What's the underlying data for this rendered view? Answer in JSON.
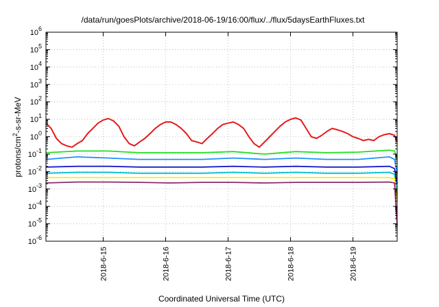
{
  "chart_data": {
    "type": "line",
    "title": "/data/run/goesPlots/archive/2018-06-19/16:00/flux/../flux/5daysEarthFluxes.txt",
    "xlabel": "Coordinated Universal Time (UTC)",
    "ylabel": {
      "base": "protons/cm",
      "sup": "2",
      "rest": "-s-sr-MeV"
    },
    "scale": {
      "y": "log",
      "x": "date"
    },
    "xlim": [
      "2018-06-14 02:00",
      "2018-06-19 17:00"
    ],
    "ylim": [
      1e-06,
      1000000.0
    ],
    "y_ticks": [
      {
        "base": "10",
        "exp": "-6"
      },
      {
        "base": "10",
        "exp": "-5"
      },
      {
        "base": "10",
        "exp": "-4"
      },
      {
        "base": "10",
        "exp": "-3"
      },
      {
        "base": "10",
        "exp": "-2"
      },
      {
        "base": "10",
        "exp": "-1"
      },
      {
        "base": "10",
        "exp": "0"
      },
      {
        "base": "10",
        "exp": "1"
      },
      {
        "base": "10",
        "exp": "2"
      },
      {
        "base": "10",
        "exp": "3"
      },
      {
        "base": "10",
        "exp": "4"
      },
      {
        "base": "10",
        "exp": "5"
      },
      {
        "base": "10",
        "exp": "6"
      }
    ],
    "x_ticks": [
      "2018-6-15",
      "2018-6-16",
      "2018-6-17",
      "2018-6-18",
      "2018-6-19"
    ],
    "grid": true,
    "series": [
      {
        "color": "#e41a1c",
        "x": [
          "2018-06-14 02:00",
          "2018-06-14 04:00",
          "2018-06-14 06:00",
          "2018-06-14 08:00",
          "2018-06-14 10:00",
          "2018-06-14 12:00",
          "2018-06-14 14:00",
          "2018-06-14 16:00",
          "2018-06-14 18:00",
          "2018-06-14 20:00",
          "2018-06-14 22:00",
          "2018-06-15 00:00",
          "2018-06-15 02:00",
          "2018-06-15 04:00",
          "2018-06-15 06:00",
          "2018-06-15 08:00",
          "2018-06-15 10:00",
          "2018-06-15 12:00",
          "2018-06-15 14:00",
          "2018-06-15 16:00",
          "2018-06-15 18:00",
          "2018-06-15 20:00",
          "2018-06-15 22:00",
          "2018-06-16 00:00",
          "2018-06-16 02:00",
          "2018-06-16 04:00",
          "2018-06-16 06:00",
          "2018-06-16 08:00",
          "2018-06-16 10:00",
          "2018-06-16 12:00",
          "2018-06-16 14:00",
          "2018-06-16 16:00",
          "2018-06-16 18:00",
          "2018-06-16 20:00",
          "2018-06-16 22:00",
          "2018-06-17 00:00",
          "2018-06-17 02:00",
          "2018-06-17 04:00",
          "2018-06-17 06:00",
          "2018-06-17 08:00",
          "2018-06-17 10:00",
          "2018-06-17 12:00",
          "2018-06-17 14:00",
          "2018-06-17 16:00",
          "2018-06-17 18:00",
          "2018-06-17 20:00",
          "2018-06-17 22:00",
          "2018-06-18 00:00",
          "2018-06-18 02:00",
          "2018-06-18 04:00",
          "2018-06-18 06:00",
          "2018-06-18 08:00",
          "2018-06-18 10:00",
          "2018-06-18 12:00",
          "2018-06-18 14:00",
          "2018-06-18 16:00",
          "2018-06-18 18:00",
          "2018-06-18 20:00",
          "2018-06-18 22:00",
          "2018-06-19 00:00",
          "2018-06-19 02:00",
          "2018-06-19 04:00",
          "2018-06-19 06:00",
          "2018-06-19 08:00",
          "2018-06-19 10:00",
          "2018-06-19 12:00",
          "2018-06-19 14:00",
          "2018-06-19 16:00",
          "2018-06-19 17:00"
        ],
        "values": [
          6,
          3,
          0.8,
          0.4,
          0.3,
          0.25,
          0.4,
          0.6,
          1.5,
          3,
          6,
          9,
          11,
          8,
          4,
          1,
          0.4,
          0.3,
          0.5,
          0.8,
          1.5,
          3,
          5,
          7,
          7,
          5,
          3,
          1.5,
          0.6,
          0.5,
          0.4,
          0.8,
          1.5,
          3,
          5,
          6,
          7,
          5,
          3,
          1,
          0.4,
          0.25,
          0.5,
          1,
          2,
          4,
          7,
          10,
          12,
          9,
          3,
          1,
          0.8,
          1.2,
          2,
          3,
          2.5,
          2,
          1.5,
          1,
          0.8,
          0.6,
          0.7,
          0.6,
          1,
          1.3,
          1.5,
          1.2,
          0.5
        ]
      },
      {
        "color": "#22dd22",
        "x": [
          "2018-06-14 02:00",
          "2018-06-14 14:00",
          "2018-06-15 02:00",
          "2018-06-15 14:00",
          "2018-06-16 02:00",
          "2018-06-16 14:00",
          "2018-06-17 02:00",
          "2018-06-17 14:00",
          "2018-06-18 02:00",
          "2018-06-18 14:00",
          "2018-06-19 02:00",
          "2018-06-19 14:00",
          "2018-06-19 16:00",
          "2018-06-19 17:00"
        ],
        "values": [
          0.12,
          0.15,
          0.15,
          0.12,
          0.12,
          0.12,
          0.14,
          0.1,
          0.14,
          0.12,
          0.13,
          0.17,
          0.15,
          0.05
        ]
      },
      {
        "color": "#1e90ff",
        "x": [
          "2018-06-14 02:00",
          "2018-06-14 14:00",
          "2018-06-15 02:00",
          "2018-06-15 14:00",
          "2018-06-16 02:00",
          "2018-06-16 14:00",
          "2018-06-17 02:00",
          "2018-06-17 14:00",
          "2018-06-18 02:00",
          "2018-06-18 14:00",
          "2018-06-19 02:00",
          "2018-06-19 14:00",
          "2018-06-19 16:00",
          "2018-06-19 17:00"
        ],
        "values": [
          0.05,
          0.07,
          0.06,
          0.05,
          0.05,
          0.05,
          0.06,
          0.05,
          0.06,
          0.05,
          0.05,
          0.07,
          0.05,
          0.008
        ]
      },
      {
        "color": "#1b1bcc",
        "x": [
          "2018-06-14 02:00",
          "2018-06-14 14:00",
          "2018-06-15 02:00",
          "2018-06-15 14:00",
          "2018-06-16 02:00",
          "2018-06-16 14:00",
          "2018-06-17 02:00",
          "2018-06-17 14:00",
          "2018-06-18 02:00",
          "2018-06-18 14:00",
          "2018-06-19 02:00",
          "2018-06-19 14:00",
          "2018-06-19 16:00",
          "2018-06-19 17:00"
        ],
        "values": [
          0.018,
          0.02,
          0.02,
          0.018,
          0.018,
          0.018,
          0.02,
          0.018,
          0.02,
          0.018,
          0.018,
          0.02,
          0.015,
          0.002
        ]
      },
      {
        "color": "#00bcd4",
        "x": [
          "2018-06-14 02:00",
          "2018-06-14 14:00",
          "2018-06-15 02:00",
          "2018-06-15 14:00",
          "2018-06-16 02:00",
          "2018-06-16 14:00",
          "2018-06-17 02:00",
          "2018-06-17 14:00",
          "2018-06-18 02:00",
          "2018-06-18 14:00",
          "2018-06-19 02:00",
          "2018-06-19 14:00",
          "2018-06-19 16:00",
          "2018-06-19 17:00"
        ],
        "values": [
          0.008,
          0.009,
          0.009,
          0.008,
          0.008,
          0.008,
          0.009,
          0.008,
          0.009,
          0.008,
          0.008,
          0.009,
          0.007,
          0.0005
        ]
      },
      {
        "color": "#ffee00",
        "x": [
          "2018-06-14 02:00",
          "2018-06-14 14:00",
          "2018-06-15 02:00",
          "2018-06-15 14:00",
          "2018-06-16 02:00",
          "2018-06-16 14:00",
          "2018-06-17 02:00",
          "2018-06-17 14:00",
          "2018-06-18 02:00",
          "2018-06-18 14:00",
          "2018-06-19 02:00",
          "2018-06-19 14:00",
          "2018-06-19 16:00",
          "2018-06-19 17:00"
        ],
        "values": [
          0.0045,
          0.0045,
          0.0045,
          0.0045,
          0.0045,
          0.0045,
          0.0045,
          0.0045,
          0.0045,
          0.0045,
          0.0045,
          0.0045,
          0.004,
          0.0002
        ]
      },
      {
        "color": "#8b2a6b",
        "x": [
          "2018-06-14 02:00",
          "2018-06-14 14:00",
          "2018-06-15 02:00",
          "2018-06-15 14:00",
          "2018-06-16 02:00",
          "2018-06-16 14:00",
          "2018-06-17 02:00",
          "2018-06-17 14:00",
          "2018-06-18 02:00",
          "2018-06-18 14:00",
          "2018-06-19 02:00",
          "2018-06-19 14:00",
          "2018-06-19 16:00",
          "2018-06-19 17:00"
        ],
        "values": [
          0.0022,
          0.0025,
          0.0025,
          0.0024,
          0.0022,
          0.0024,
          0.0024,
          0.0022,
          0.0024,
          0.0024,
          0.0024,
          0.0025,
          0.0022,
          8e-06
        ]
      }
    ]
  }
}
